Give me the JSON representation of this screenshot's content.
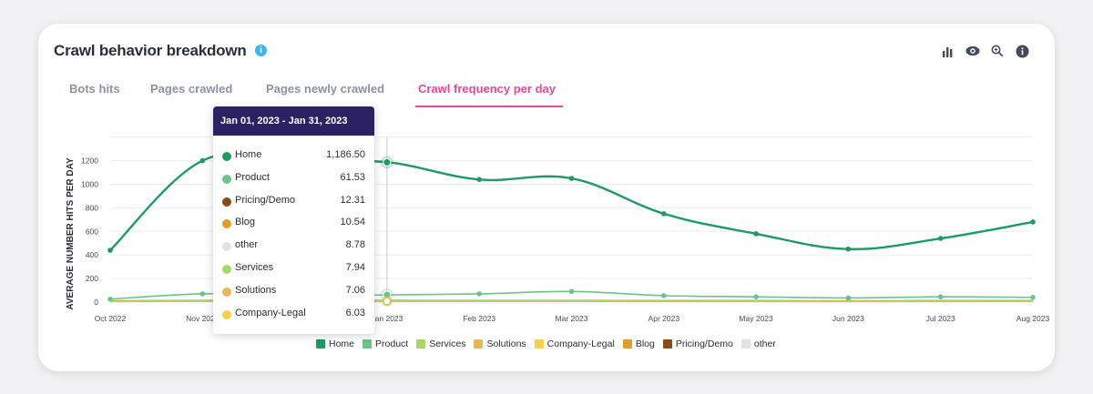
{
  "card": {
    "title": "Crawl behavior breakdown",
    "title_info": "i"
  },
  "toolbar": [
    {
      "name": "bar-chart-icon"
    },
    {
      "name": "eye-icon"
    },
    {
      "name": "zoom-icon"
    },
    {
      "name": "info-icon"
    }
  ],
  "tabs": [
    {
      "label": "Bots hits",
      "active": false
    },
    {
      "label": "Pages crawled",
      "active": false
    },
    {
      "label": "Pages newly crawled",
      "active": false
    },
    {
      "label": "Crawl frequency per day",
      "active": true
    }
  ],
  "colors": {
    "accent": "#e8479a",
    "tooltip_header": "#2b2163",
    "Home": "#1e9b60",
    "Product": "#6cc38a",
    "Services": "#a7d86a",
    "Solutions": "#e8b55a",
    "Company-Legal": "#f5cf4a",
    "Blog": "#e89a2c",
    "Pricing/Demo": "#8a4b14",
    "other": "#dfe2e6"
  },
  "chart_data": {
    "type": "line",
    "ylabel": "AVERAGE NUMBER HITS PER DAY",
    "ylim": [
      0,
      1400
    ],
    "y_ticks": [
      "0",
      "200",
      "400",
      "600",
      "800",
      "1000",
      "1200"
    ],
    "categories": [
      "Oct 2022",
      "Nov 2022",
      "Dec 2022",
      "Jan 2023",
      "Feb 2023",
      "Mar 2023",
      "Apr 2023",
      "May 2023",
      "Jun 2023",
      "Jul 2023",
      "Aug 2023"
    ],
    "x_tick_labels": [
      "Oct 2022",
      "Nov 2022",
      "",
      "Jan 2023",
      "Feb 2023",
      "Mar 2023",
      "Apr 2023",
      "May 2023",
      "Jun 2023",
      "Jul 2023",
      "Aug 2023"
    ],
    "grid": true,
    "legend_position": "bottom",
    "series": [
      {
        "name": "Home",
        "values": [
          440,
          1200,
          1190,
          1186.5,
          1040,
          1050,
          750,
          580,
          450,
          540,
          680
        ]
      },
      {
        "name": "Product",
        "values": [
          25,
          70,
          55,
          61.53,
          70,
          90,
          55,
          45,
          35,
          45,
          40
        ]
      },
      {
        "name": "Services",
        "values": [
          5,
          8,
          8,
          7.94,
          8,
          8,
          7,
          7,
          6,
          7,
          7
        ]
      },
      {
        "name": "Solutions",
        "values": [
          6,
          7,
          7,
          7.06,
          7,
          7,
          6,
          6,
          6,
          6,
          6
        ]
      },
      {
        "name": "Company-Legal",
        "values": [
          5,
          6,
          6,
          6.03,
          6,
          6,
          5,
          5,
          5,
          5,
          5
        ]
      },
      {
        "name": "Blog",
        "values": [
          9,
          11,
          10,
          10.54,
          11,
          11,
          10,
          10,
          9,
          10,
          10
        ]
      },
      {
        "name": "Pricing/Demo",
        "values": [
          10,
          12,
          12,
          12.31,
          12,
          12,
          11,
          11,
          10,
          11,
          11
        ]
      },
      {
        "name": "other",
        "values": [
          8,
          9,
          9,
          8.78,
          9,
          9,
          8,
          8,
          8,
          8,
          8
        ]
      }
    ],
    "tooltip": {
      "title": "Jan 01, 2023 - Jan 31, 2023",
      "category_index": 3,
      "rows": [
        {
          "name": "Home",
          "value": "1,186.50"
        },
        {
          "name": "Product",
          "value": "61.53"
        },
        {
          "name": "Pricing/Demo",
          "value": "12.31"
        },
        {
          "name": "Blog",
          "value": "10.54"
        },
        {
          "name": "other",
          "value": "8.78"
        },
        {
          "name": "Services",
          "value": "7.94"
        },
        {
          "name": "Solutions",
          "value": "7.06"
        },
        {
          "name": "Company-Legal",
          "value": "6.03"
        }
      ]
    },
    "legend": [
      "Home",
      "Product",
      "Services",
      "Solutions",
      "Company-Legal",
      "Blog",
      "Pricing/Demo",
      "other"
    ]
  }
}
